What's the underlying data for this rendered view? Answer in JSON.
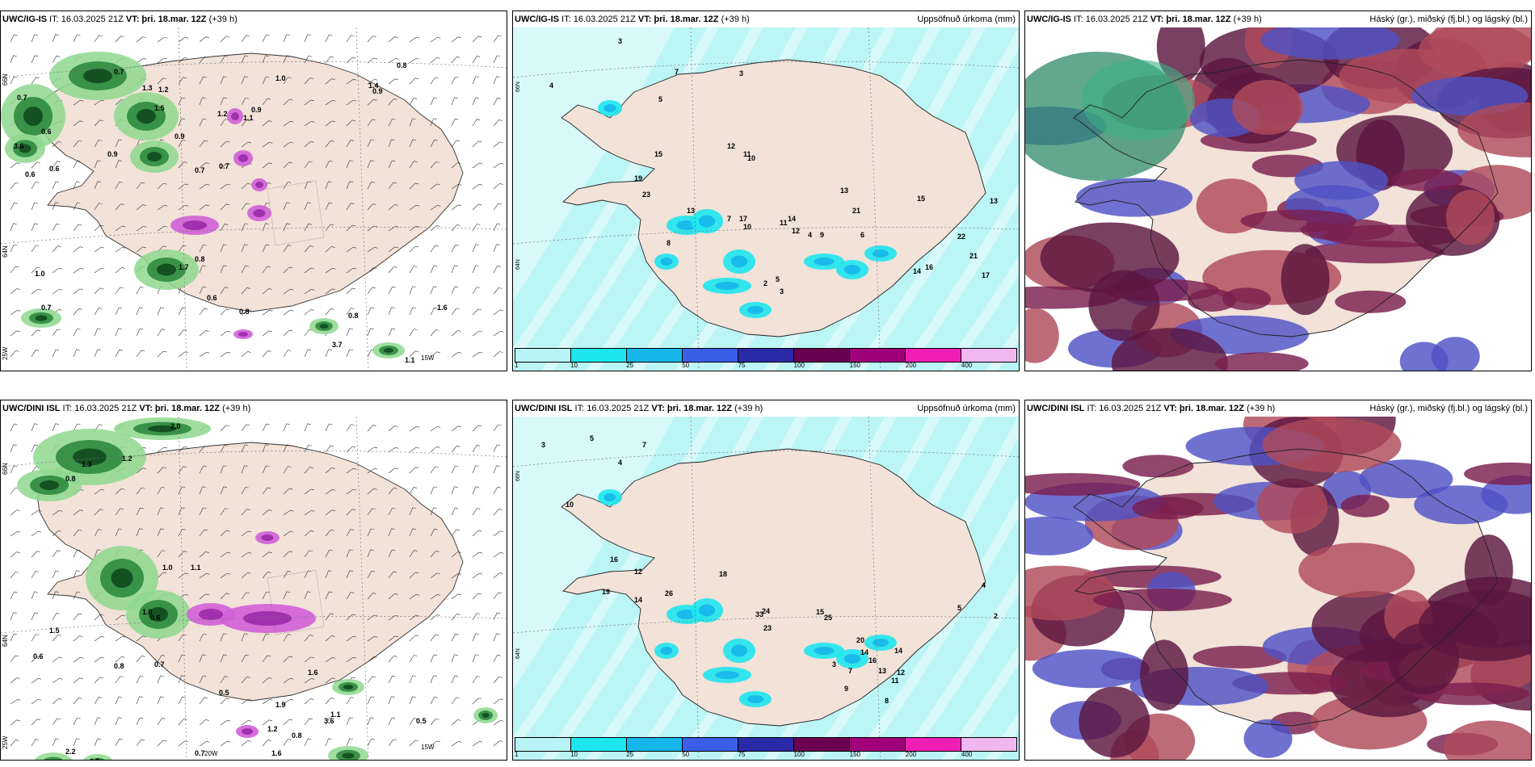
{
  "panels": [
    {
      "id": "p1",
      "title_prefix": "UWC/IG-IS",
      "it": "IT: 16.03.2025 21Z",
      "vt": "VT: þri. 18.mar. 12Z",
      "lead": "(+39 h)",
      "subtitle": "",
      "type": "wind-precip"
    },
    {
      "id": "p2",
      "title_prefix": "UWC/IG-IS",
      "it": "IT: 16.03.2025 21Z",
      "vt": "VT: þri. 18.mar. 12Z",
      "lead": "(+39 h)",
      "subtitle": "Uppsöfnuð úrkoma (mm)",
      "type": "accum"
    },
    {
      "id": "p3",
      "title_prefix": "UWC/IG-IS",
      "it": "IT: 16.03.2025 21Z",
      "vt": "VT: þri. 18.mar. 12Z",
      "lead": "(+39 h)",
      "subtitle": "Háský (gr.), miðský (fj.bl.) og lágský (bl.)",
      "type": "cloud"
    },
    {
      "id": "p4",
      "title_prefix": "UWC/DINI ISL",
      "it": "IT: 16.03.2025 21Z",
      "vt": "VT: þri. 18.mar. 12Z",
      "lead": "(+39 h)",
      "subtitle": "",
      "type": "wind-precip"
    },
    {
      "id": "p5",
      "title_prefix": "UWC/DINI ISL",
      "it": "IT: 16.03.2025 21Z",
      "vt": "VT: þri. 18.mar. 12Z",
      "lead": "(+39 h)",
      "subtitle": "Uppsöfnuð úrkoma (mm)",
      "type": "accum"
    },
    {
      "id": "p6",
      "title_prefix": "UWC/DINI ISL",
      "it": "IT: 16.03.2025 21Z",
      "vt": "VT: þri. 18.mar. 12Z",
      "lead": "(+39 h)",
      "subtitle": "Háský (gr.), miðský (fj.bl.) og lágský (bl.)",
      "type": "cloud"
    }
  ],
  "colorbar": {
    "ticks": [
      "1",
      "10",
      "25",
      "50",
      "75",
      "100",
      "150",
      "200",
      "400"
    ],
    "colors": [
      "#b8f4f6",
      "#1ee6ee",
      "#16b6ea",
      "#3a5ee8",
      "#2a2aa8",
      "#6a0050",
      "#a0007a",
      "#f01eb4",
      "#f0b8f0"
    ]
  },
  "grid_labels": {
    "p1": {
      "lat66": "66N",
      "lat64": "64N",
      "lon25": "25W",
      "lon15": "15W"
    },
    "p2": {
      "lat66": "66N",
      "lat64": "64N"
    },
    "p4": {
      "lat66": "66N",
      "lat64": "64N",
      "lon25": "25W",
      "lon20": "20W",
      "lon15": "15W"
    },
    "p5": {
      "lat66": "66N",
      "lat64": "64N"
    }
  },
  "precip_labels_p1": [
    "0.6",
    "0.9",
    "0.7",
    "1.3",
    "1.2",
    "1.5",
    "0.7",
    "0.6",
    "0.9",
    "0.7",
    "3.6",
    "1.2",
    "0.7",
    "0.6",
    "1.0",
    "0.8",
    "0.8",
    "0.6",
    "1.7",
    "1.0",
    "0.8",
    "0.9",
    "1.4",
    "1.1",
    "3.7",
    "0.7",
    "1.6",
    "0.8",
    "1.1",
    "0.9"
  ],
  "precip_labels_p4": [
    "2.0",
    "1.2",
    "1.3",
    "0.8",
    "1.0",
    "1.1",
    "1.5",
    "0.6",
    "0.7",
    "0.6",
    "1.0",
    "0.8",
    "1.6",
    "0.5",
    "0.8",
    "3.6",
    "0.5",
    "1.2",
    "1.5",
    "2.2",
    "0.7",
    "1.6",
    "1.1",
    "1.9"
  ],
  "accum_labels_p2": [
    "3",
    "4",
    "7",
    "5",
    "3",
    "15",
    "19",
    "23",
    "12",
    "11",
    "10",
    "7",
    "17",
    "10",
    "13",
    "8",
    "11",
    "12",
    "13",
    "21",
    "14",
    "15",
    "22",
    "21",
    "17",
    "16",
    "13",
    "14",
    "6",
    "9",
    "4",
    "2",
    "5",
    "3"
  ],
  "accum_labels_p5": [
    "3",
    "5",
    "7",
    "4",
    "10",
    "16",
    "19",
    "12",
    "14",
    "26",
    "18",
    "33",
    "23",
    "24",
    "25",
    "20",
    "15",
    "14",
    "16",
    "13",
    "12",
    "11",
    "14",
    "9",
    "8",
    "5",
    "4",
    "2",
    "3",
    "7"
  ]
}
